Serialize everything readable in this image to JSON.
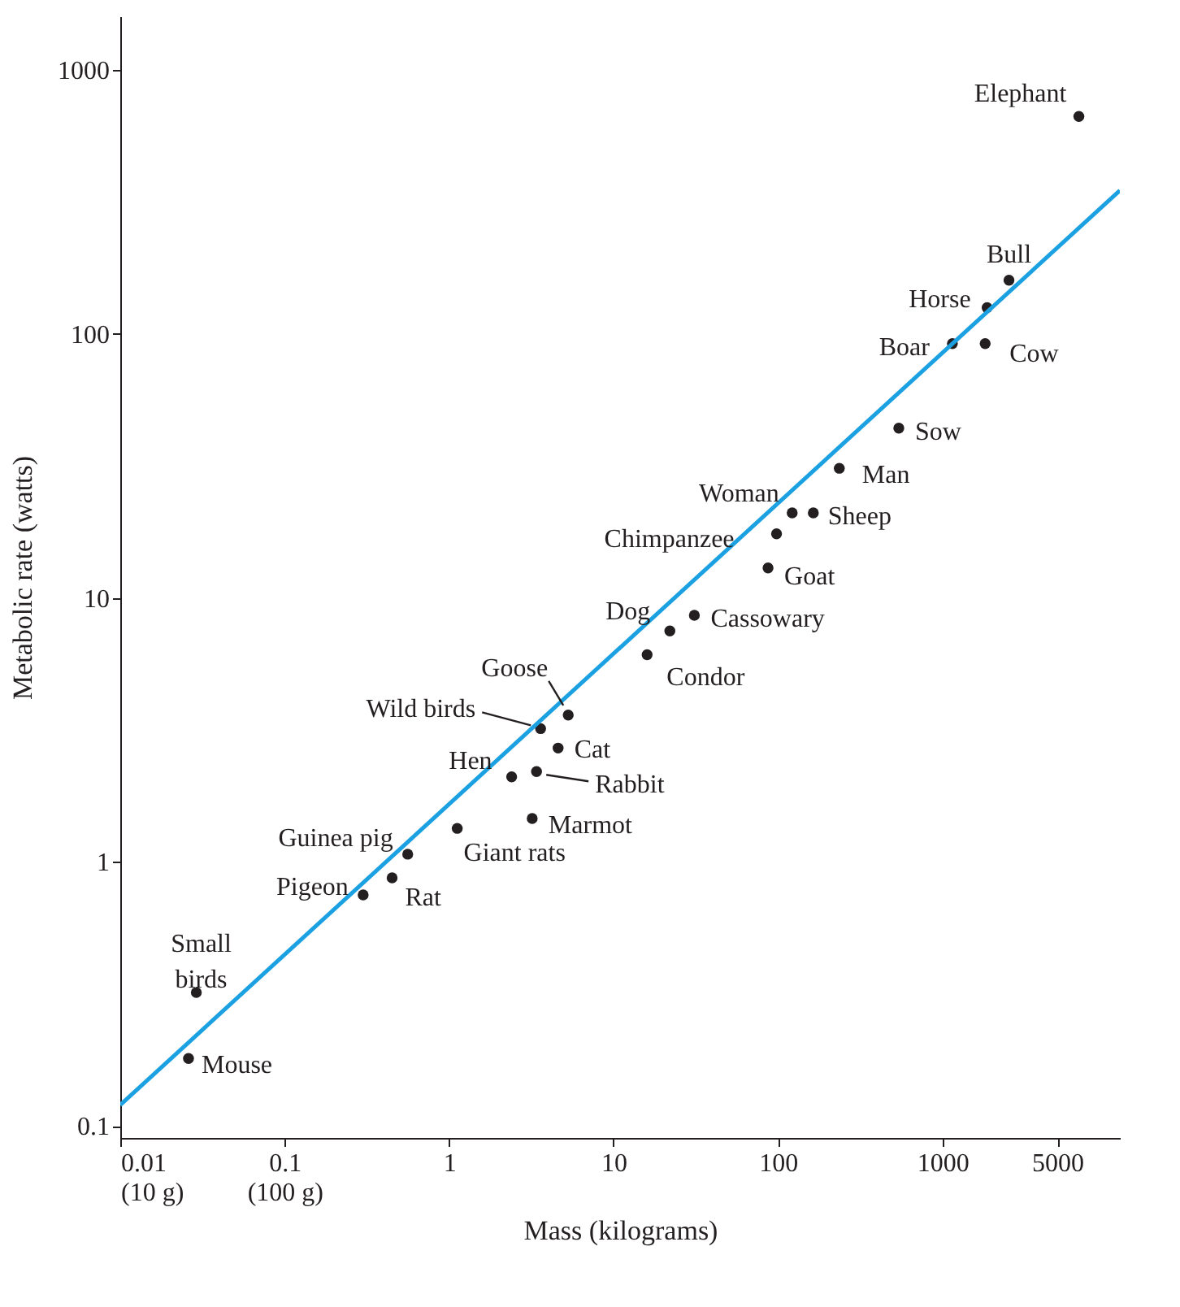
{
  "chart_data": {
    "type": "scatter",
    "xlabel": "Mass (kilograms)",
    "ylabel": "Metabolic rate (watts)",
    "log": "xy",
    "grid": false,
    "xlim": [
      0.01,
      12000
    ],
    "ylim": [
      0.09,
      1600
    ],
    "xticks": [
      {
        "value": 0.01,
        "label": "0.01\n(10 g)"
      },
      {
        "value": 0.1,
        "label": "0.1\n(100 g)"
      },
      1,
      10,
      100,
      1000,
      5000
    ],
    "yticks": [
      0.1,
      1,
      10,
      100,
      1000
    ],
    "series": [
      {
        "marker": "circle",
        "color": "#231f20",
        "x": [
          0.026,
          0.029,
          0.3,
          0.45,
          0.56,
          1.12,
          3.2,
          2.4,
          3.4,
          4.6,
          3.6,
          5.3,
          16,
          22,
          31,
          87,
          98,
          122,
          164,
          236,
          543,
          1150,
          1870,
          1820,
          2540,
          6760
        ],
        "values": [
          0.18,
          0.32,
          0.75,
          0.87,
          1.07,
          1.34,
          1.46,
          2.1,
          2.2,
          2.7,
          3.2,
          3.6,
          6.1,
          7.5,
          8.6,
          13,
          17.5,
          21,
          21,
          31,
          44,
          92,
          126,
          92,
          160,
          668
        ]
      },
      {
        "type": "line",
        "color": "#1ba1e2",
        "line_style": "solid",
        "x": [
          0.01,
          12000
        ],
        "values": [
          0.12,
          350
        ]
      }
    ],
    "annotations": [
      {
        "text": "Mouse",
        "x": 0.026,
        "y": 0.18
      },
      {
        "text": "Small birds",
        "x": 0.029,
        "y": 0.32
      },
      {
        "text": "Pigeon",
        "x": 0.3,
        "y": 0.75
      },
      {
        "text": "Rat",
        "x": 0.45,
        "y": 0.87
      },
      {
        "text": "Guinea pig",
        "x": 0.56,
        "y": 1.07
      },
      {
        "text": "Giant rats",
        "x": 1.12,
        "y": 1.34
      },
      {
        "text": "Marmot",
        "x": 3.2,
        "y": 1.46
      },
      {
        "text": "Hen",
        "x": 2.4,
        "y": 2.1
      },
      {
        "text": "Rabbit",
        "x": 3.4,
        "y": 2.2
      },
      {
        "text": "Cat",
        "x": 4.6,
        "y": 2.7
      },
      {
        "text": "Wild birds",
        "x": 3.6,
        "y": 3.2
      },
      {
        "text": "Goose",
        "x": 5.3,
        "y": 3.6
      },
      {
        "text": "Condor",
        "x": 16,
        "y": 6.1
      },
      {
        "text": "Dog",
        "x": 22,
        "y": 7.5
      },
      {
        "text": "Cassowary",
        "x": 31,
        "y": 8.6
      },
      {
        "text": "Goat",
        "x": 87,
        "y": 13
      },
      {
        "text": "Chimpanzee",
        "x": 98,
        "y": 17.5
      },
      {
        "text": "Woman",
        "x": 122,
        "y": 21
      },
      {
        "text": "Sheep",
        "x": 164,
        "y": 21
      },
      {
        "text": "Man",
        "x": 236,
        "y": 31
      },
      {
        "text": "Sow",
        "x": 543,
        "y": 44
      },
      {
        "text": "Boar",
        "x": 1150,
        "y": 92
      },
      {
        "text": "Horse",
        "x": 1870,
        "y": 126
      },
      {
        "text": "Cow",
        "x": 1820,
        "y": 92
      },
      {
        "text": "Bull",
        "x": 2540,
        "y": 160
      },
      {
        "text": "Elephant",
        "x": 6760,
        "y": 668
      }
    ]
  }
}
